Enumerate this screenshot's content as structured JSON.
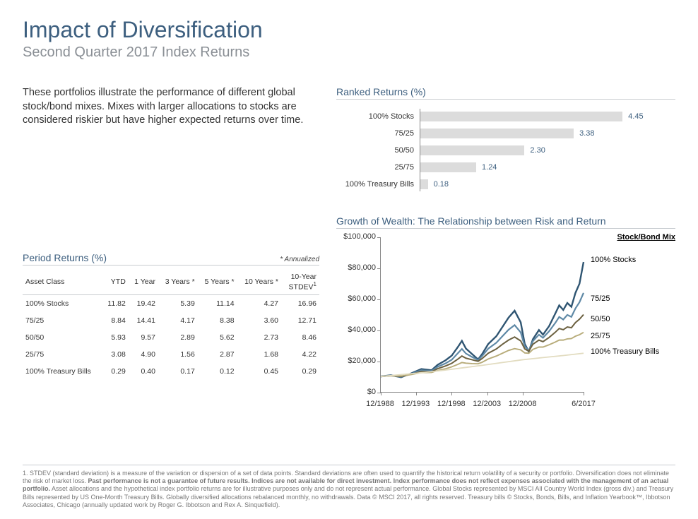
{
  "title": "Impact of Diversification",
  "subtitle": "Second Quarter 2017 Index Returns",
  "intro": "These portfolios illustrate the performance of different global stock/bond mixes. Mixes with larger allocations to stocks are considered riskier but have higher expected returns over time.",
  "ranked": {
    "title": "Ranked Returns (%)",
    "max": 4.6,
    "bar_color": "#dcdcdc",
    "label_color": "#3d5f7f",
    "items": [
      {
        "label": "100% Stocks",
        "value": 4.45
      },
      {
        "label": "75/25",
        "value": 3.38
      },
      {
        "label": "50/50",
        "value": 2.3
      },
      {
        "label": "25/75",
        "value": 1.24
      },
      {
        "label": "100% Treasury Bills",
        "value": 0.18
      }
    ]
  },
  "period_table": {
    "title": "Period Returns (%)",
    "annualized_note": "* Annualized",
    "columns": [
      "Asset Class",
      "YTD",
      "1 Year",
      "3 Years *",
      "5 Years *",
      "10 Years *",
      "10-Year STDEV¹"
    ],
    "rows": [
      [
        "100% Stocks",
        "11.82",
        "19.42",
        "5.39",
        "11.14",
        "4.27",
        "16.96"
      ],
      [
        "75/25",
        "8.84",
        "14.41",
        "4.17",
        "8.38",
        "3.60",
        "12.71"
      ],
      [
        "50/50",
        "5.93",
        "9.57",
        "2.89",
        "5.62",
        "2.73",
        "8.46"
      ],
      [
        "25/75",
        "3.08",
        "4.90",
        "1.56",
        "2.87",
        "1.68",
        "4.22"
      ],
      [
        "100% Treasury Bills",
        "0.29",
        "0.40",
        "0.17",
        "0.12",
        "0.45",
        "0.29"
      ]
    ]
  },
  "growth_chart": {
    "title": "Growth of Wealth: The Relationship between Risk and Return",
    "legend_title": "Stock/Bond Mix",
    "y_min": 0,
    "y_max": 100000,
    "y_step": 20000,
    "y_prefix": "$",
    "x_labels": [
      "12/1988",
      "12/1993",
      "12/1998",
      "12/2003",
      "12/2008",
      "6/2017"
    ],
    "x_positions_pct": [
      0,
      17.5,
      35,
      52.5,
      70,
      100
    ],
    "series": [
      {
        "name": "100% Stocks",
        "color": "#2f5572",
        "width": 2.4,
        "legend_y_pct": 12,
        "points": [
          [
            0,
            10000
          ],
          [
            5,
            10800
          ],
          [
            10,
            9500
          ],
          [
            15,
            12000
          ],
          [
            20,
            14800
          ],
          [
            25,
            14000
          ],
          [
            28,
            17500
          ],
          [
            32,
            20500
          ],
          [
            35,
            23500
          ],
          [
            38,
            29000
          ],
          [
            40,
            33000
          ],
          [
            42,
            28000
          ],
          [
            45,
            24500
          ],
          [
            48,
            21000
          ],
          [
            50,
            24500
          ],
          [
            53,
            31000
          ],
          [
            57,
            36000
          ],
          [
            60,
            42000
          ],
          [
            63,
            48000
          ],
          [
            66,
            52500
          ],
          [
            69,
            45000
          ],
          [
            71,
            31000
          ],
          [
            73,
            26000
          ],
          [
            75,
            34000
          ],
          [
            78,
            40000
          ],
          [
            80,
            37000
          ],
          [
            83,
            42500
          ],
          [
            86,
            50500
          ],
          [
            88,
            56000
          ],
          [
            90,
            53000
          ],
          [
            92,
            57500
          ],
          [
            94,
            55000
          ],
          [
            96,
            64000
          ],
          [
            98,
            70000
          ],
          [
            100,
            84000
          ]
        ]
      },
      {
        "name": "75/25",
        "color": "#5f89a6",
        "width": 2.2,
        "legend_y_pct": 37,
        "points": [
          [
            0,
            10000
          ],
          [
            5,
            10600
          ],
          [
            10,
            9800
          ],
          [
            15,
            11700
          ],
          [
            20,
            14000
          ],
          [
            25,
            13500
          ],
          [
            28,
            16200
          ],
          [
            32,
            18500
          ],
          [
            35,
            20800
          ],
          [
            38,
            25000
          ],
          [
            40,
            27800
          ],
          [
            42,
            24800
          ],
          [
            45,
            22600
          ],
          [
            48,
            20600
          ],
          [
            50,
            23200
          ],
          [
            53,
            28000
          ],
          [
            57,
            31800
          ],
          [
            60,
            36000
          ],
          [
            63,
            40200
          ],
          [
            66,
            43200
          ],
          [
            69,
            38500
          ],
          [
            71,
            29500
          ],
          [
            73,
            26500
          ],
          [
            75,
            32800
          ],
          [
            78,
            37000
          ],
          [
            80,
            35000
          ],
          [
            83,
            39200
          ],
          [
            86,
            44500
          ],
          [
            88,
            48500
          ],
          [
            90,
            46800
          ],
          [
            92,
            49800
          ],
          [
            94,
            48500
          ],
          [
            96,
            54000
          ],
          [
            98,
            58000
          ],
          [
            100,
            64000
          ]
        ]
      },
      {
        "name": "50/50",
        "color": "#6c6140",
        "width": 2.0,
        "legend_y_pct": 50,
        "points": [
          [
            0,
            10000
          ],
          [
            5,
            10500
          ],
          [
            10,
            10000
          ],
          [
            15,
            11400
          ],
          [
            20,
            13200
          ],
          [
            25,
            13000
          ],
          [
            28,
            15000
          ],
          [
            32,
            16800
          ],
          [
            35,
            18500
          ],
          [
            38,
            21200
          ],
          [
            40,
            23200
          ],
          [
            42,
            21800
          ],
          [
            45,
            20800
          ],
          [
            48,
            19800
          ],
          [
            50,
            21600
          ],
          [
            53,
            25000
          ],
          [
            57,
            27800
          ],
          [
            60,
            30800
          ],
          [
            63,
            33500
          ],
          [
            66,
            35500
          ],
          [
            69,
            33000
          ],
          [
            71,
            27800
          ],
          [
            73,
            26300
          ],
          [
            75,
            30800
          ],
          [
            78,
            33500
          ],
          [
            80,
            32500
          ],
          [
            83,
            35200
          ],
          [
            86,
            38500
          ],
          [
            88,
            41000
          ],
          [
            90,
            40200
          ],
          [
            92,
            42000
          ],
          [
            94,
            41500
          ],
          [
            96,
            44800
          ],
          [
            98,
            47000
          ],
          [
            100,
            50000
          ]
        ]
      },
      {
        "name": "25/75",
        "color": "#b8ac7a",
        "width": 1.9,
        "legend_y_pct": 61,
        "points": [
          [
            0,
            10000
          ],
          [
            5,
            10400
          ],
          [
            10,
            10300
          ],
          [
            15,
            11200
          ],
          [
            20,
            12500
          ],
          [
            25,
            12600
          ],
          [
            28,
            13800
          ],
          [
            32,
            15000
          ],
          [
            35,
            16200
          ],
          [
            38,
            17800
          ],
          [
            40,
            19000
          ],
          [
            42,
            18600
          ],
          [
            45,
            18300
          ],
          [
            48,
            18200
          ],
          [
            50,
            19200
          ],
          [
            53,
            21300
          ],
          [
            57,
            23200
          ],
          [
            60,
            25000
          ],
          [
            63,
            26800
          ],
          [
            66,
            28000
          ],
          [
            69,
            27200
          ],
          [
            71,
            25200
          ],
          [
            73,
            25000
          ],
          [
            75,
            27500
          ],
          [
            78,
            29000
          ],
          [
            80,
            29000
          ],
          [
            83,
            30500
          ],
          [
            86,
            32200
          ],
          [
            88,
            33500
          ],
          [
            90,
            33500
          ],
          [
            92,
            34300
          ],
          [
            94,
            34500
          ],
          [
            96,
            36000
          ],
          [
            98,
            37000
          ],
          [
            100,
            38500
          ]
        ]
      },
      {
        "name": "100% Treasury Bills",
        "color": "#e2dcc0",
        "width": 1.8,
        "legend_y_pct": 71,
        "points": [
          [
            0,
            10000
          ],
          [
            10,
            11200
          ],
          [
            20,
            12400
          ],
          [
            30,
            13800
          ],
          [
            40,
            15500
          ],
          [
            50,
            17200
          ],
          [
            60,
            19000
          ],
          [
            70,
            20800
          ],
          [
            80,
            22200
          ],
          [
            90,
            23500
          ],
          [
            100,
            25000
          ]
        ]
      }
    ]
  },
  "footnote": "1. STDEV (standard deviation) is a measure of the variation or dispersion of a set of data points. Standard deviations are often used to quantify the historical return volatility of a security or portfolio. Diversification does not eliminate the risk of market loss. <b>Past performance is not a guarantee of future results. Indices are not available for direct investment. Index performance does not reflect expenses associated with the management of an actual portfolio.</b> Asset allocations and the hypothetical index portfolio returns are for illustrative purposes only and do not represent actual performance. Global Stocks represented by MSCI All Country World Index (gross div.) and Treasury Bills represented by US One-Month Treasury Bills. Globally diversified allocations rebalanced monthly, no withdrawals. Data © MSCI 2017, all rights reserved. Treasury bills © Stocks, Bonds, Bills, and Inflation Yearbook™, Ibbotson Associates, Chicago (annually updated work by Roger G. Ibbotson and Rex A. Sinquefield)."
}
